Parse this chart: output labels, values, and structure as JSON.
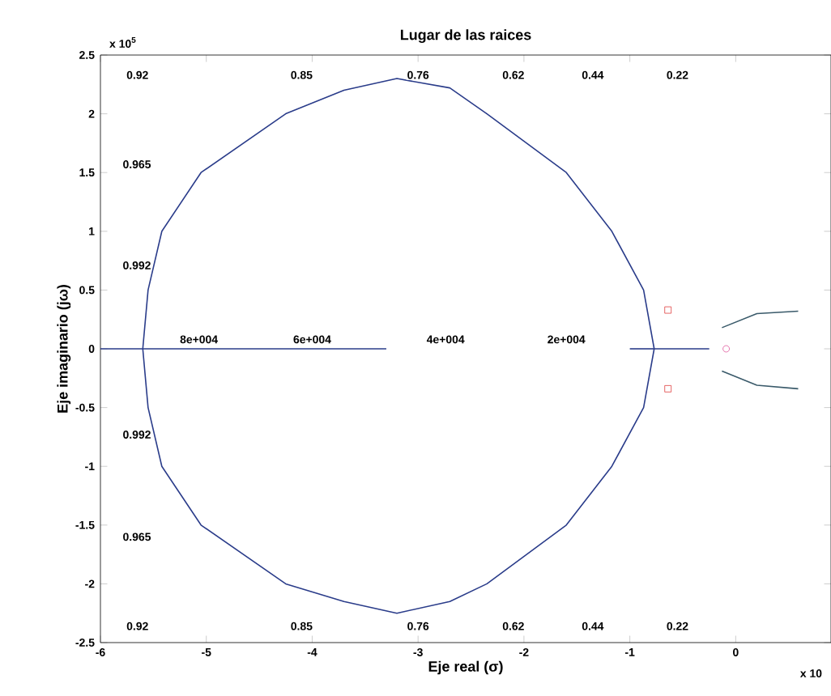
{
  "chart_data": {
    "type": "line",
    "title": "Lugar de las raices",
    "xlabel": "Eje real (σ)",
    "ylabel": "Eje imaginario (jω)",
    "xlim": [
      -6,
      0.9
    ],
    "ylim": [
      -2.5,
      2.5
    ],
    "xticks": [
      -6,
      -5,
      -4,
      -3,
      -2,
      -1,
      0
    ],
    "yticks": [
      -2.5,
      -2,
      -1.5,
      -1,
      -0.5,
      0,
      0.5,
      1,
      1.5,
      2,
      2.5
    ],
    "grid": false,
    "marker": "none",
    "line_style": "solid",
    "series": [
      {
        "color": "#2a3c8a",
        "x": [
          -6,
          -5.6,
          -5.55,
          -5.42,
          -5.05,
          -4.25,
          -3.7,
          -3.2,
          -2.7,
          -2.35,
          -1.6,
          -1.17,
          -0.87,
          -0.77,
          -0.25
        ],
        "values": [
          0,
          0,
          0.5,
          1,
          1.5,
          2,
          2.2,
          2.3,
          2.22,
          2,
          1.5,
          1,
          0.5,
          0,
          0
        ]
      },
      {
        "color": "#2a3c8a",
        "x": [
          -5.6,
          -5.55,
          -5.42,
          -5.05,
          -4.25,
          -3.7,
          -3.2,
          -2.7,
          -2.35,
          -1.6,
          -1.17,
          -0.87,
          -0.77
        ],
        "values": [
          0,
          -0.5,
          -1,
          -1.5,
          -2,
          -2.15,
          -2.25,
          -2.15,
          -2,
          -1.5,
          -1,
          -0.5,
          0
        ]
      },
      {
        "color": "#2a3c8a",
        "x": [
          -5.6,
          -3.3
        ],
        "values": [
          0,
          0
        ]
      },
      {
        "color": "#2a3c8a",
        "x": [
          -1.0,
          -0.77
        ],
        "values": [
          0,
          0
        ]
      },
      {
        "color": "#3a5a6a",
        "x": [
          -0.13,
          0.2,
          0.59
        ],
        "values": [
          0.18,
          0.3,
          0.32
        ]
      },
      {
        "color": "#3a5a6a",
        "x": [
          -0.13,
          0.2,
          0.59
        ],
        "values": [
          -0.19,
          -0.31,
          -0.34
        ]
      },
      {
        "type": "scatter",
        "marker": "circle",
        "color": "#e0559a",
        "x": [
          -0.09
        ],
        "values": [
          0
        ]
      },
      {
        "type": "scatter",
        "marker": "square",
        "color": "#e04040",
        "x": [
          -0.64,
          -0.64
        ],
        "values": [
          0.33,
          -0.34
        ]
      }
    ],
    "annotations": [
      "x 10$^{5}$",
      "x 10",
      "0.92",
      "0.85",
      "0.76",
      "0.62",
      "0.44",
      "0.22",
      "0.92",
      "0.85",
      "0.76",
      "0.62",
      "0.44",
      "0.22",
      "0.965",
      "0.992",
      "0.992",
      "0.965",
      "8e+004",
      "6e+004",
      "4e+004",
      "2e+004"
    ]
  }
}
